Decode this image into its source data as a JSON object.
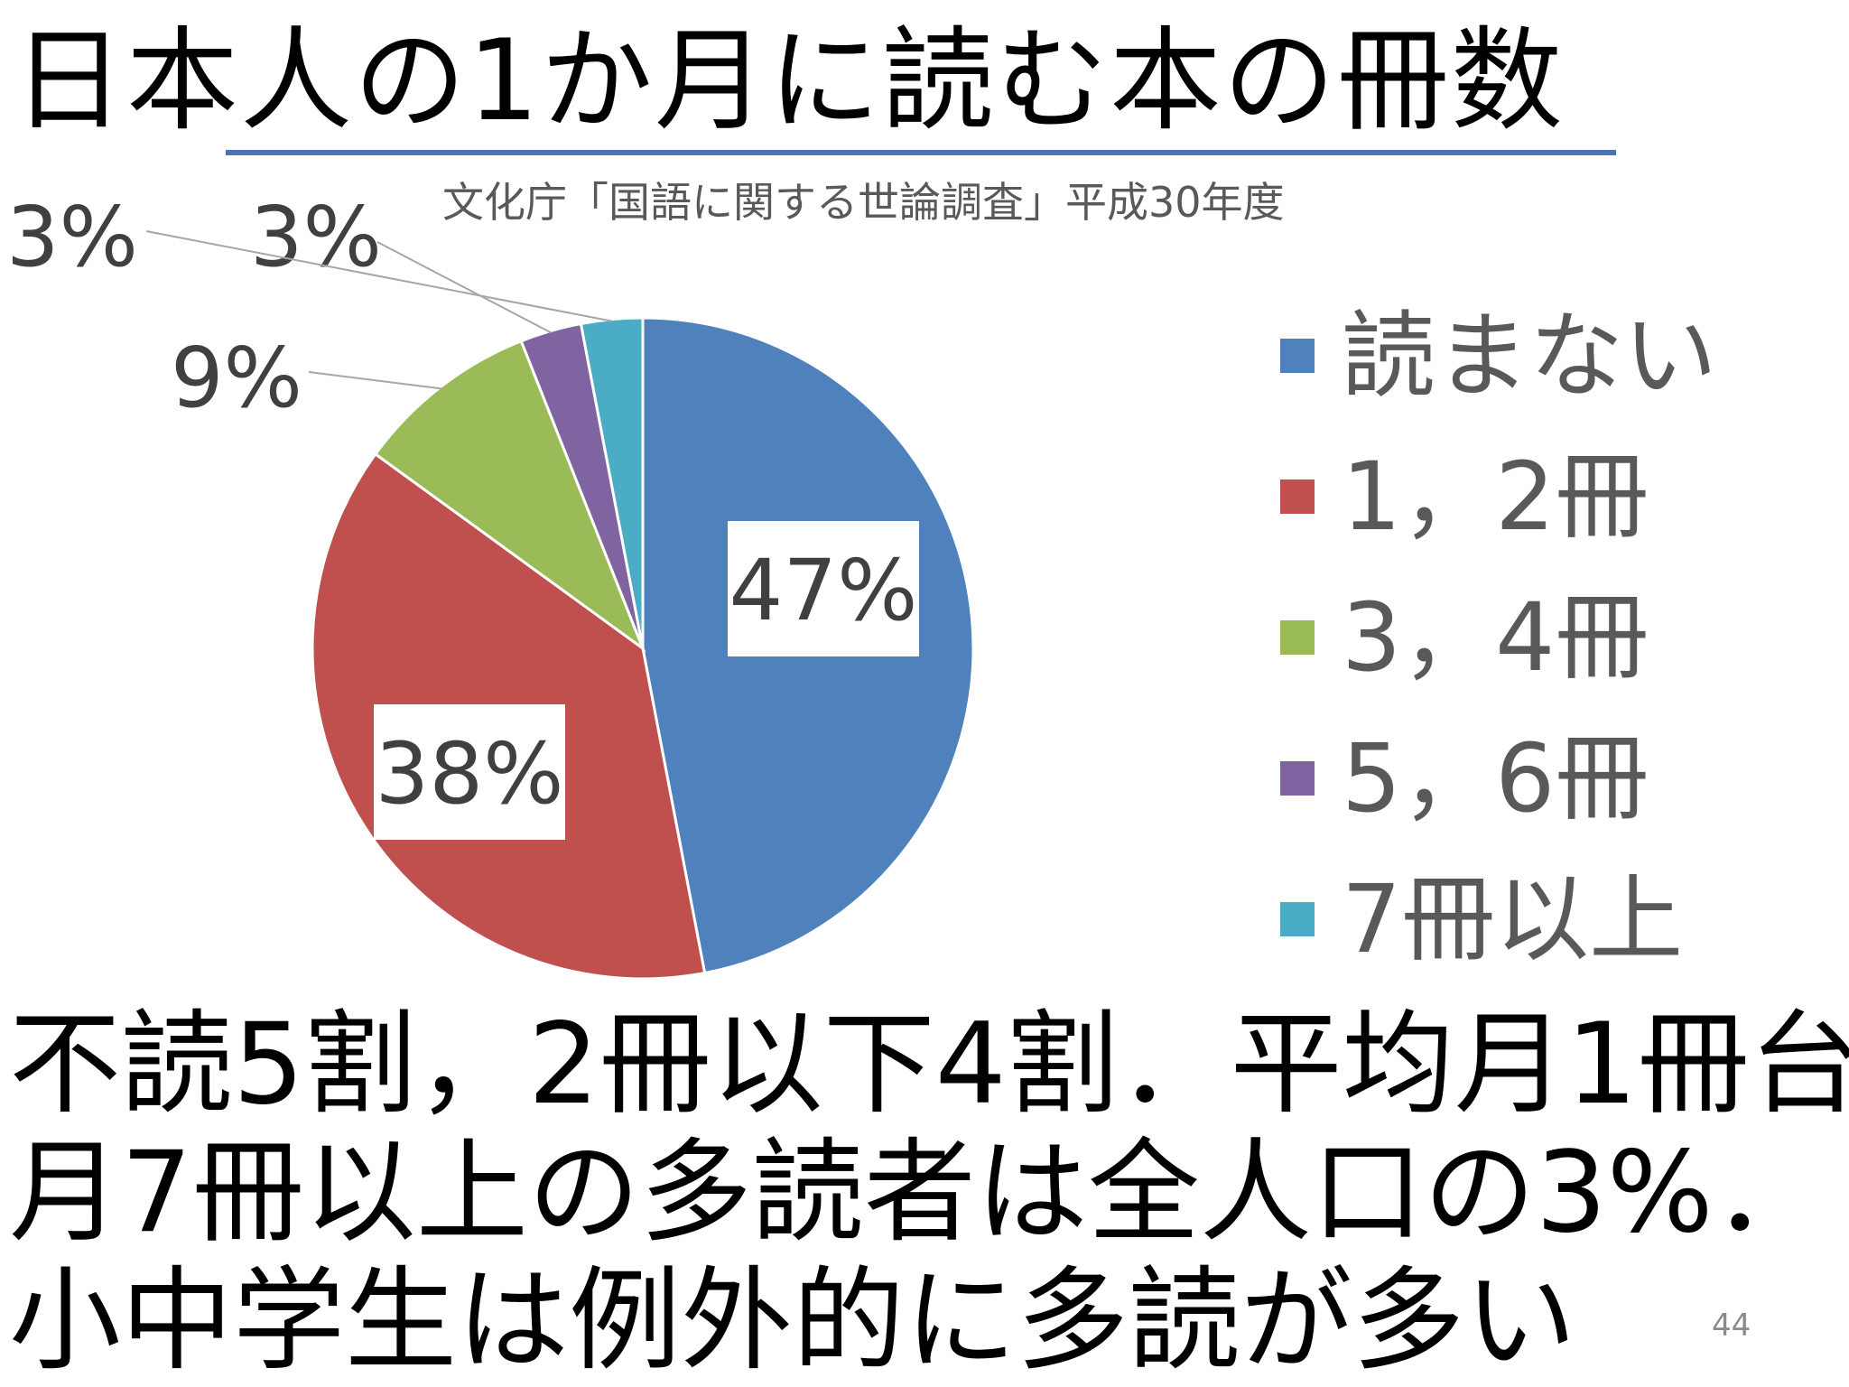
{
  "slide": {
    "title": "日本人の1か月に読む本の冊数",
    "source": "文化庁「国語に関する世論調査」平成30年度",
    "summary_lines": [
      "不読5割，2冊以下4割．平均月1冊台",
      "月7冊以上の多読者は全人口の3%．",
      "小中学生は例外的に多読が多い"
    ],
    "page_number": "44"
  },
  "chart_data": {
    "type": "pie",
    "title": "",
    "categories": [
      "読まない",
      "1，2冊",
      "3，4冊",
      "5，6冊",
      "7冊以上"
    ],
    "values": [
      47,
      38,
      9,
      3,
      3
    ],
    "labels": [
      "47%",
      "38%",
      "9%",
      "3%",
      "3%"
    ],
    "colors": [
      "#4f81bd",
      "#c0504d",
      "#9bbb59",
      "#8064a2",
      "#4bacc6"
    ],
    "legend_position": "right"
  }
}
